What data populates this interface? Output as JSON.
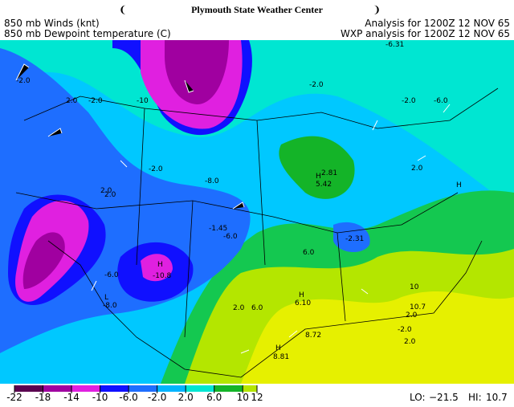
{
  "header": {
    "title": "Plymouth State Weather Center",
    "left_lines": [
      "850 mb Winds (knt)",
      "850 mb Dewpoint temperature (C)"
    ],
    "right_lines": [
      "Analysis for 1200Z 12 NOV 65",
      "WXP analysis for 1200Z 12 NOV 65"
    ]
  },
  "map": {
    "labels": [
      "-2.0",
      "-6.31",
      "-2.0",
      "2.0",
      "-2.0",
      "-2.0",
      "-6.0",
      "2.0",
      "-10",
      "-2.0",
      "H",
      "5.42",
      "2.81",
      "2.0",
      "H",
      "-8.0",
      "2.0",
      "-6.0",
      "-1.45",
      "H",
      "-2.31",
      "-6.0",
      "-10.8",
      "L",
      "-8.0",
      "6.0",
      "2.0",
      "6.0",
      "H",
      "6.10",
      "8.72",
      "H",
      "8.81",
      "10",
      "10.7",
      "2.0",
      "-2.0",
      "2.0"
    ]
  },
  "colorbar": {
    "levels": [
      -22,
      -18,
      -14,
      -10,
      {
        "value": -6,
        "label": "-6.0"
      },
      {
        "value": -2,
        "label": "-2.0"
      },
      {
        "value": 2,
        "label": "2.0"
      },
      {
        "value": 6,
        "label": "6.0"
      },
      10,
      12
    ],
    "colors": [
      "#5a0050",
      "#a000a0",
      "#e020e0",
      "#1010ff",
      "#1e6eff",
      "#00b4ff",
      "#00e6d2",
      "#14b428",
      "#b4e600"
    ]
  },
  "extremes": {
    "lo_label": "LO:",
    "lo": {
      "value": -21.5,
      "label": "−21.5"
    },
    "hi_label": "HI:",
    "hi": 10.7
  }
}
